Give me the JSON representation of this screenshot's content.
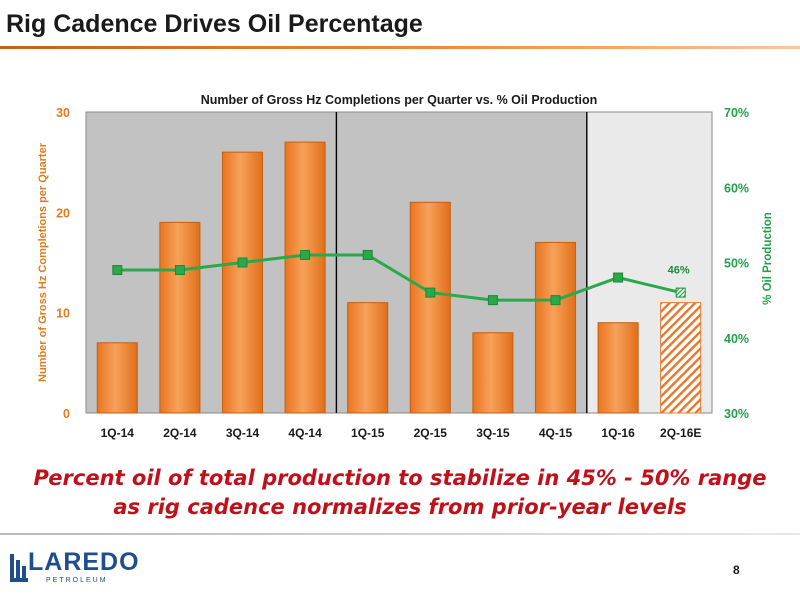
{
  "page": {
    "title": "Rig Cadence Drives Oil Percentage",
    "caption": "Percent oil of total production to stabilize in 45% - 50% range as rig cadence normalizes from prior-year levels",
    "page_number": "8",
    "logo_word": "LAREDO",
    "logo_sub": "PETROLEUM",
    "colors": {
      "accent": "#f28a30",
      "line": "#2aa84a",
      "left_axis": "#e07b20",
      "right_axis": "#22a14a",
      "caption": "#c0111a",
      "logo": "#1f4e8c"
    }
  },
  "chart_data": {
    "type": "bar",
    "title": "Number of Gross Hz Completions per Quarter vs. % Oil Production",
    "categories": [
      "1Q-14",
      "2Q-14",
      "3Q-14",
      "4Q-14",
      "1Q-15",
      "2Q-15",
      "3Q-15",
      "4Q-15",
      "1Q-16",
      "2Q-16E"
    ],
    "series": [
      {
        "kind": "bar",
        "axis": "left",
        "values": [
          7,
          19,
          26,
          27,
          11,
          21,
          8,
          17,
          9,
          11
        ],
        "estimated_last": true
      },
      {
        "kind": "line",
        "axis": "right",
        "values": [
          49,
          49,
          50,
          51,
          51,
          46,
          45,
          45,
          48,
          46
        ],
        "estimated_last": true
      }
    ],
    "ylabel": "Number of Gross Hz Completions per Quarter",
    "ylabel_right": "% Oil Production",
    "ylim": [
      0,
      30
    ],
    "yticks": [
      "0",
      "10",
      "20",
      "30"
    ],
    "ylim_right": [
      30,
      70
    ],
    "yticks_right": [
      "30%",
      "40%",
      "50%",
      "60%",
      "70%"
    ],
    "annotation": {
      "text": "46%",
      "index": 9
    },
    "year_dividers_after": [
      3,
      7
    ],
    "grid": false
  }
}
